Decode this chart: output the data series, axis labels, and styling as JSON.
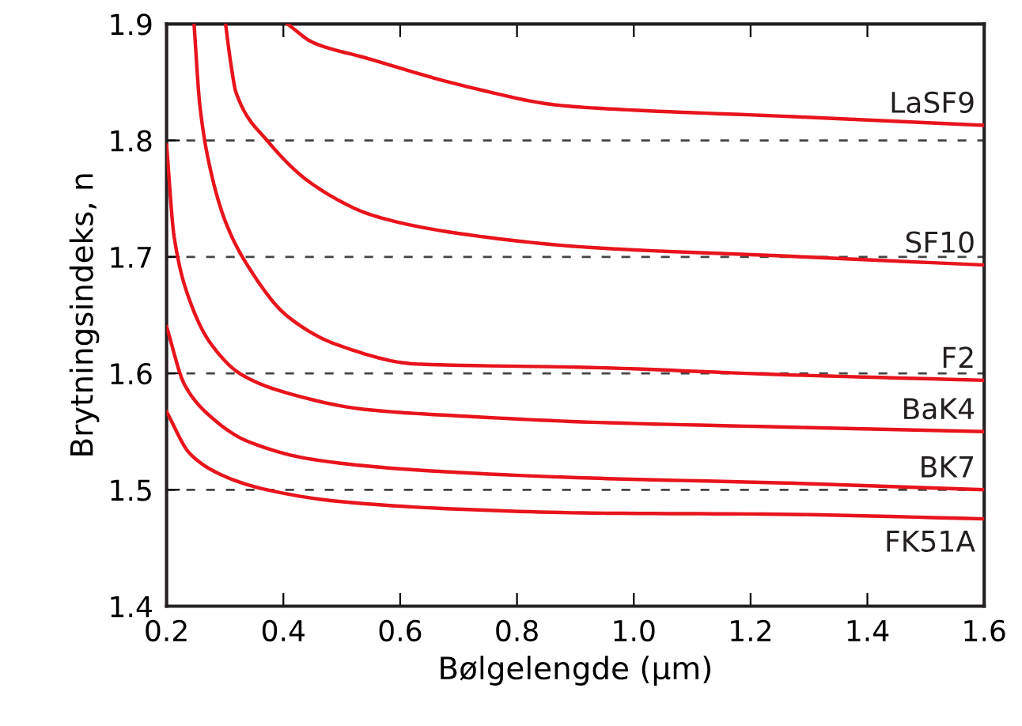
{
  "chart_data": {
    "type": "line",
    "xlabel": "Bølgelengde (μm)",
    "ylabel": "Brytningsindeks, n",
    "xlim": [
      0.2,
      1.6
    ],
    "ylim": [
      1.4,
      1.9
    ],
    "xticks": [
      0.2,
      0.4,
      0.6,
      0.8,
      {
        "value": 1.0,
        "label": "1.0"
      },
      1.2,
      1.4,
      1.6
    ],
    "yticks": [
      1.4,
      1.5,
      1.6,
      1.7,
      1.8,
      1.9
    ],
    "grid": "y",
    "legend": false,
    "marker": "none",
    "line_style": "solid",
    "series": [
      {
        "name": "LaSF9",
        "color": "#e8141c",
        "x": [
          0.407,
          0.451,
          0.54,
          0.716,
          0.875,
          1.0,
          1.245,
          1.6
        ],
        "values": [
          1.9,
          1.884,
          1.871,
          1.846,
          1.83,
          1.826,
          1.821,
          1.813
        ]
      },
      {
        "name": "SF10",
        "color": "#e8141c",
        "x": [
          0.301,
          0.31,
          0.319,
          0.372,
          0.451,
          0.557,
          0.716,
          0.928,
          1.245,
          1.6
        ],
        "values": [
          1.9,
          1.866,
          1.841,
          1.8,
          1.762,
          1.735,
          1.719,
          1.708,
          1.701,
          1.693
        ]
      },
      {
        "name": "F2",
        "color": "#e8141c",
        "x": [
          0.247,
          0.257,
          0.275,
          0.301,
          0.337,
          0.407,
          0.495,
          0.628,
          0.928,
          1.245,
          1.6
        ],
        "values": [
          1.9,
          1.83,
          1.775,
          1.73,
          1.694,
          1.649,
          1.624,
          1.608,
          1.605,
          1.599,
          1.594
        ]
      },
      {
        "name": "BaK4",
        "color": "#e8141c",
        "x": [
          0.2,
          0.213,
          0.24,
          0.275,
          0.328,
          0.407,
          0.54,
          0.716,
          0.928,
          1.245,
          1.6
        ],
        "values": [
          1.796,
          1.717,
          1.662,
          1.626,
          1.599,
          1.583,
          1.569,
          1.563,
          1.558,
          1.554,
          1.55
        ]
      },
      {
        "name": "BK7",
        "color": "#e8141c",
        "x": [
          0.2,
          0.231,
          0.275,
          0.337,
          0.451,
          0.628,
          0.928,
          1.245,
          1.6
        ],
        "values": [
          1.64,
          1.59,
          1.563,
          1.542,
          1.526,
          1.517,
          1.51,
          1.506,
          1.5
        ]
      },
      {
        "name": "FK51A",
        "color": "#e8141c",
        "x": [
          0.2,
          0.24,
          0.293,
          0.363,
          0.495,
          0.716,
          0.928,
          1.245,
          1.6
        ],
        "values": [
          1.567,
          1.531,
          1.513,
          1.501,
          1.49,
          1.483,
          1.48,
          1.479,
          1.475
        ]
      }
    ]
  }
}
